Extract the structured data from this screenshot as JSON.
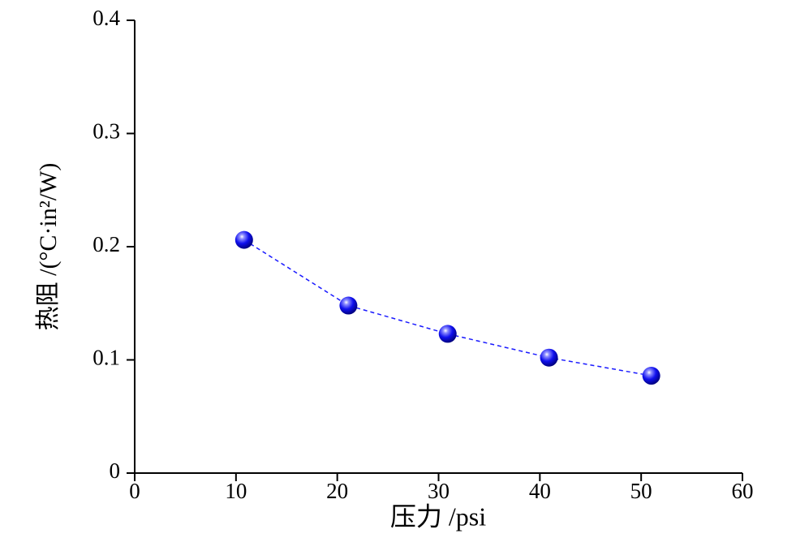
{
  "chart_data": {
    "type": "line",
    "x_label": "压力 /psi",
    "y_label": "热阻 /(°C·in²/W)",
    "x": [
      10.8,
      21.1,
      30.9,
      40.9,
      51.0
    ],
    "values": [
      0.206,
      0.148,
      0.123,
      0.102,
      0.086
    ],
    "color": "#1a1aff",
    "xlim": [
      0,
      60
    ],
    "xticks": [
      0,
      10,
      20,
      30,
      40,
      50,
      60
    ],
    "ylim": [
      0,
      0.4
    ],
    "yticks": [
      0,
      0.1,
      0.2,
      0.3,
      0.4
    ],
    "grid": false
  }
}
